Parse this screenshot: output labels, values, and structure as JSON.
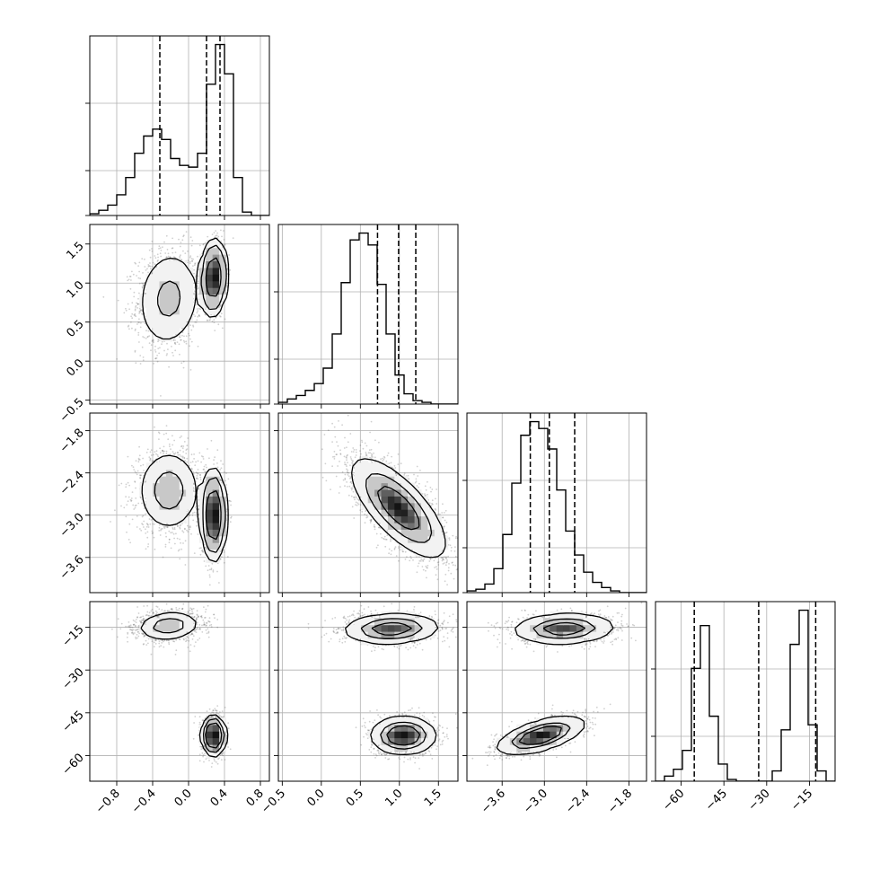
{
  "chart_data": {
    "type": "corner",
    "title": "",
    "params": [
      {
        "name": "",
        "range": [
          -1.1,
          0.9
        ],
        "ticks": [
          -0.8,
          -0.4,
          0.0,
          0.4,
          0.8
        ],
        "tick_labels": [
          "−0.8",
          "−0.4",
          "0.0",
          "0.4",
          "0.8"
        ]
      },
      {
        "name": "",
        "range": [
          -0.55,
          1.75
        ],
        "ticks": [
          -0.5,
          0.0,
          0.5,
          1.0,
          1.5
        ],
        "tick_labels": [
          "−0.5",
          "0.0",
          "0.5",
          "1.0",
          "1.5"
        ]
      },
      {
        "name": "",
        "range": [
          -4.1,
          -1.55
        ],
        "ticks": [
          -3.6,
          -3.0,
          -2.4,
          -1.8
        ],
        "tick_labels": [
          "−3.6",
          "−3.0",
          "−2.4",
          "−1.8"
        ]
      },
      {
        "name": "",
        "range": [
          -69,
          -6
        ],
        "ticks": [
          -60,
          -45,
          -30,
          -15
        ],
        "tick_labels": [
          "−60",
          "−45",
          "−30",
          "−15"
        ]
      }
    ],
    "histograms": [
      {
        "bins": 20,
        "counts": [
          1,
          3,
          6,
          12,
          22,
          36,
          46,
          50,
          44,
          33,
          29,
          28,
          36,
          76,
          99,
          82,
          22,
          2,
          0,
          0
        ],
        "quantiles": [
          -0.32,
          0.2,
          0.35
        ]
      },
      {
        "bins": 20,
        "counts": [
          1,
          3,
          5,
          8,
          12,
          21,
          41,
          71,
          96,
          100,
          93,
          70,
          41,
          17,
          6,
          2,
          1,
          0,
          0,
          0
        ],
        "quantiles": [
          0.72,
          0.99,
          1.21
        ]
      },
      {
        "bins": 20,
        "counts": [
          1,
          2,
          5,
          14,
          34,
          64,
          92,
          100,
          96,
          84,
          60,
          36,
          22,
          12,
          6,
          3,
          1,
          0,
          0,
          0
        ],
        "quantiles": [
          -3.2,
          -2.93,
          -2.57
        ]
      },
      {
        "bins": 20,
        "counts": [
          0,
          3,
          7,
          18,
          66,
          91,
          38,
          10,
          1,
          0,
          0,
          0,
          0,
          6,
          30,
          80,
          100,
          33,
          6,
          0
        ],
        "quantiles": [
          -55.4,
          -32.8,
          -12.8
        ]
      }
    ],
    "correlations": [
      {
        "x": 0,
        "y": 1,
        "blobs": [
          {
            "mx": -0.22,
            "my": 0.8,
            "sx": 0.18,
            "sy": 0.32,
            "rho": 0.1,
            "w": 0.42
          },
          {
            "mx": 0.28,
            "my": 1.07,
            "sx": 0.06,
            "sy": 0.2,
            "rho": 0.1,
            "w": 0.58
          }
        ]
      },
      {
        "x": 0,
        "y": 2,
        "blobs": [
          {
            "mx": -0.22,
            "my": -2.65,
            "sx": 0.18,
            "sy": 0.3,
            "rho": 0.0,
            "w": 0.42
          },
          {
            "mx": 0.28,
            "my": -3.0,
            "sx": 0.06,
            "sy": 0.28,
            "rho": 0.0,
            "w": 0.58
          }
        ]
      },
      {
        "x": 0,
        "y": 3,
        "blobs": [
          {
            "mx": -0.22,
            "my": -14.5,
            "sx": 0.18,
            "sy": 2.6,
            "rho": 0.15,
            "w": 0.42
          },
          {
            "mx": 0.28,
            "my": -53.0,
            "sx": 0.06,
            "sy": 3.2,
            "rho": 0.0,
            "w": 0.58
          }
        ]
      },
      {
        "x": 1,
        "y": 2,
        "blobs": [
          {
            "mx": 0.99,
            "my": -2.9,
            "sx": 0.3,
            "sy": 0.35,
            "rho": -0.72,
            "w": 1.0
          }
        ]
      },
      {
        "x": 1,
        "y": 3,
        "blobs": [
          {
            "mx": 0.9,
            "my": -15.5,
            "sx": 0.3,
            "sy": 2.6,
            "rho": 0.1,
            "w": 0.5
          },
          {
            "mx": 1.05,
            "my": -53.0,
            "sx": 0.2,
            "sy": 3.2,
            "rho": 0.0,
            "w": 0.5
          }
        ]
      },
      {
        "x": 2,
        "y": 3,
        "blobs": [
          {
            "mx": -2.72,
            "my": -15.5,
            "sx": 0.35,
            "sy": 2.6,
            "rho": 0.1,
            "w": 0.5
          },
          {
            "mx": -3.05,
            "my": -53.0,
            "sx": 0.3,
            "sy": 3.2,
            "rho": 0.6,
            "w": 0.5
          }
        ]
      }
    ],
    "grid": true,
    "contour_levels": 3,
    "legend": "none"
  }
}
